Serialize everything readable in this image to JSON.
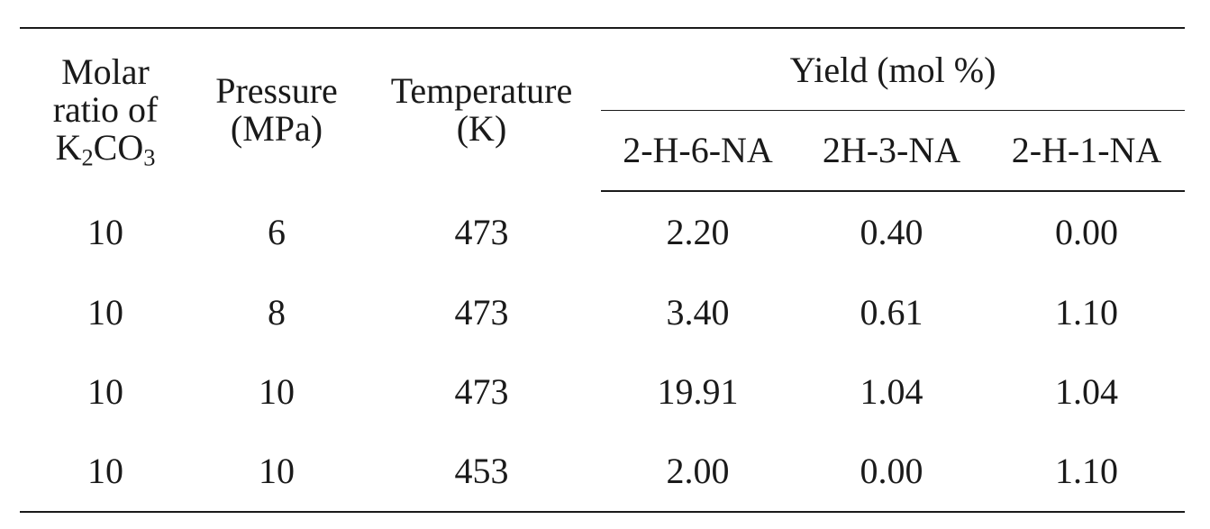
{
  "table": {
    "header": {
      "col1_line1": "Molar",
      "col1_line2": "ratio of",
      "col1_line3_main": "K",
      "col1_line3_sub1": "2",
      "col1_line3_mid": "CO",
      "col1_line3_sub2": "3",
      "col2_line1": "Pressure",
      "col2_line2": "(MPa)",
      "col3_line1": "Temperature",
      "col3_line2": "(K)",
      "group_label": "Yield (mol %)",
      "sub1": "2-H-6-NA",
      "sub2": "2H-3-NA",
      "sub3": "2-H-1-NA"
    },
    "rows": [
      [
        "10",
        "6",
        "473",
        "2.20",
        "0.40",
        "0.00"
      ],
      [
        "10",
        "8",
        "473",
        "3.40",
        "0.61",
        "1.10"
      ],
      [
        "10",
        "10",
        "473",
        "19.91",
        "1.04",
        "1.04"
      ],
      [
        "10",
        "10",
        "453",
        "2.00",
        "0.00",
        "1.10"
      ]
    ]
  }
}
